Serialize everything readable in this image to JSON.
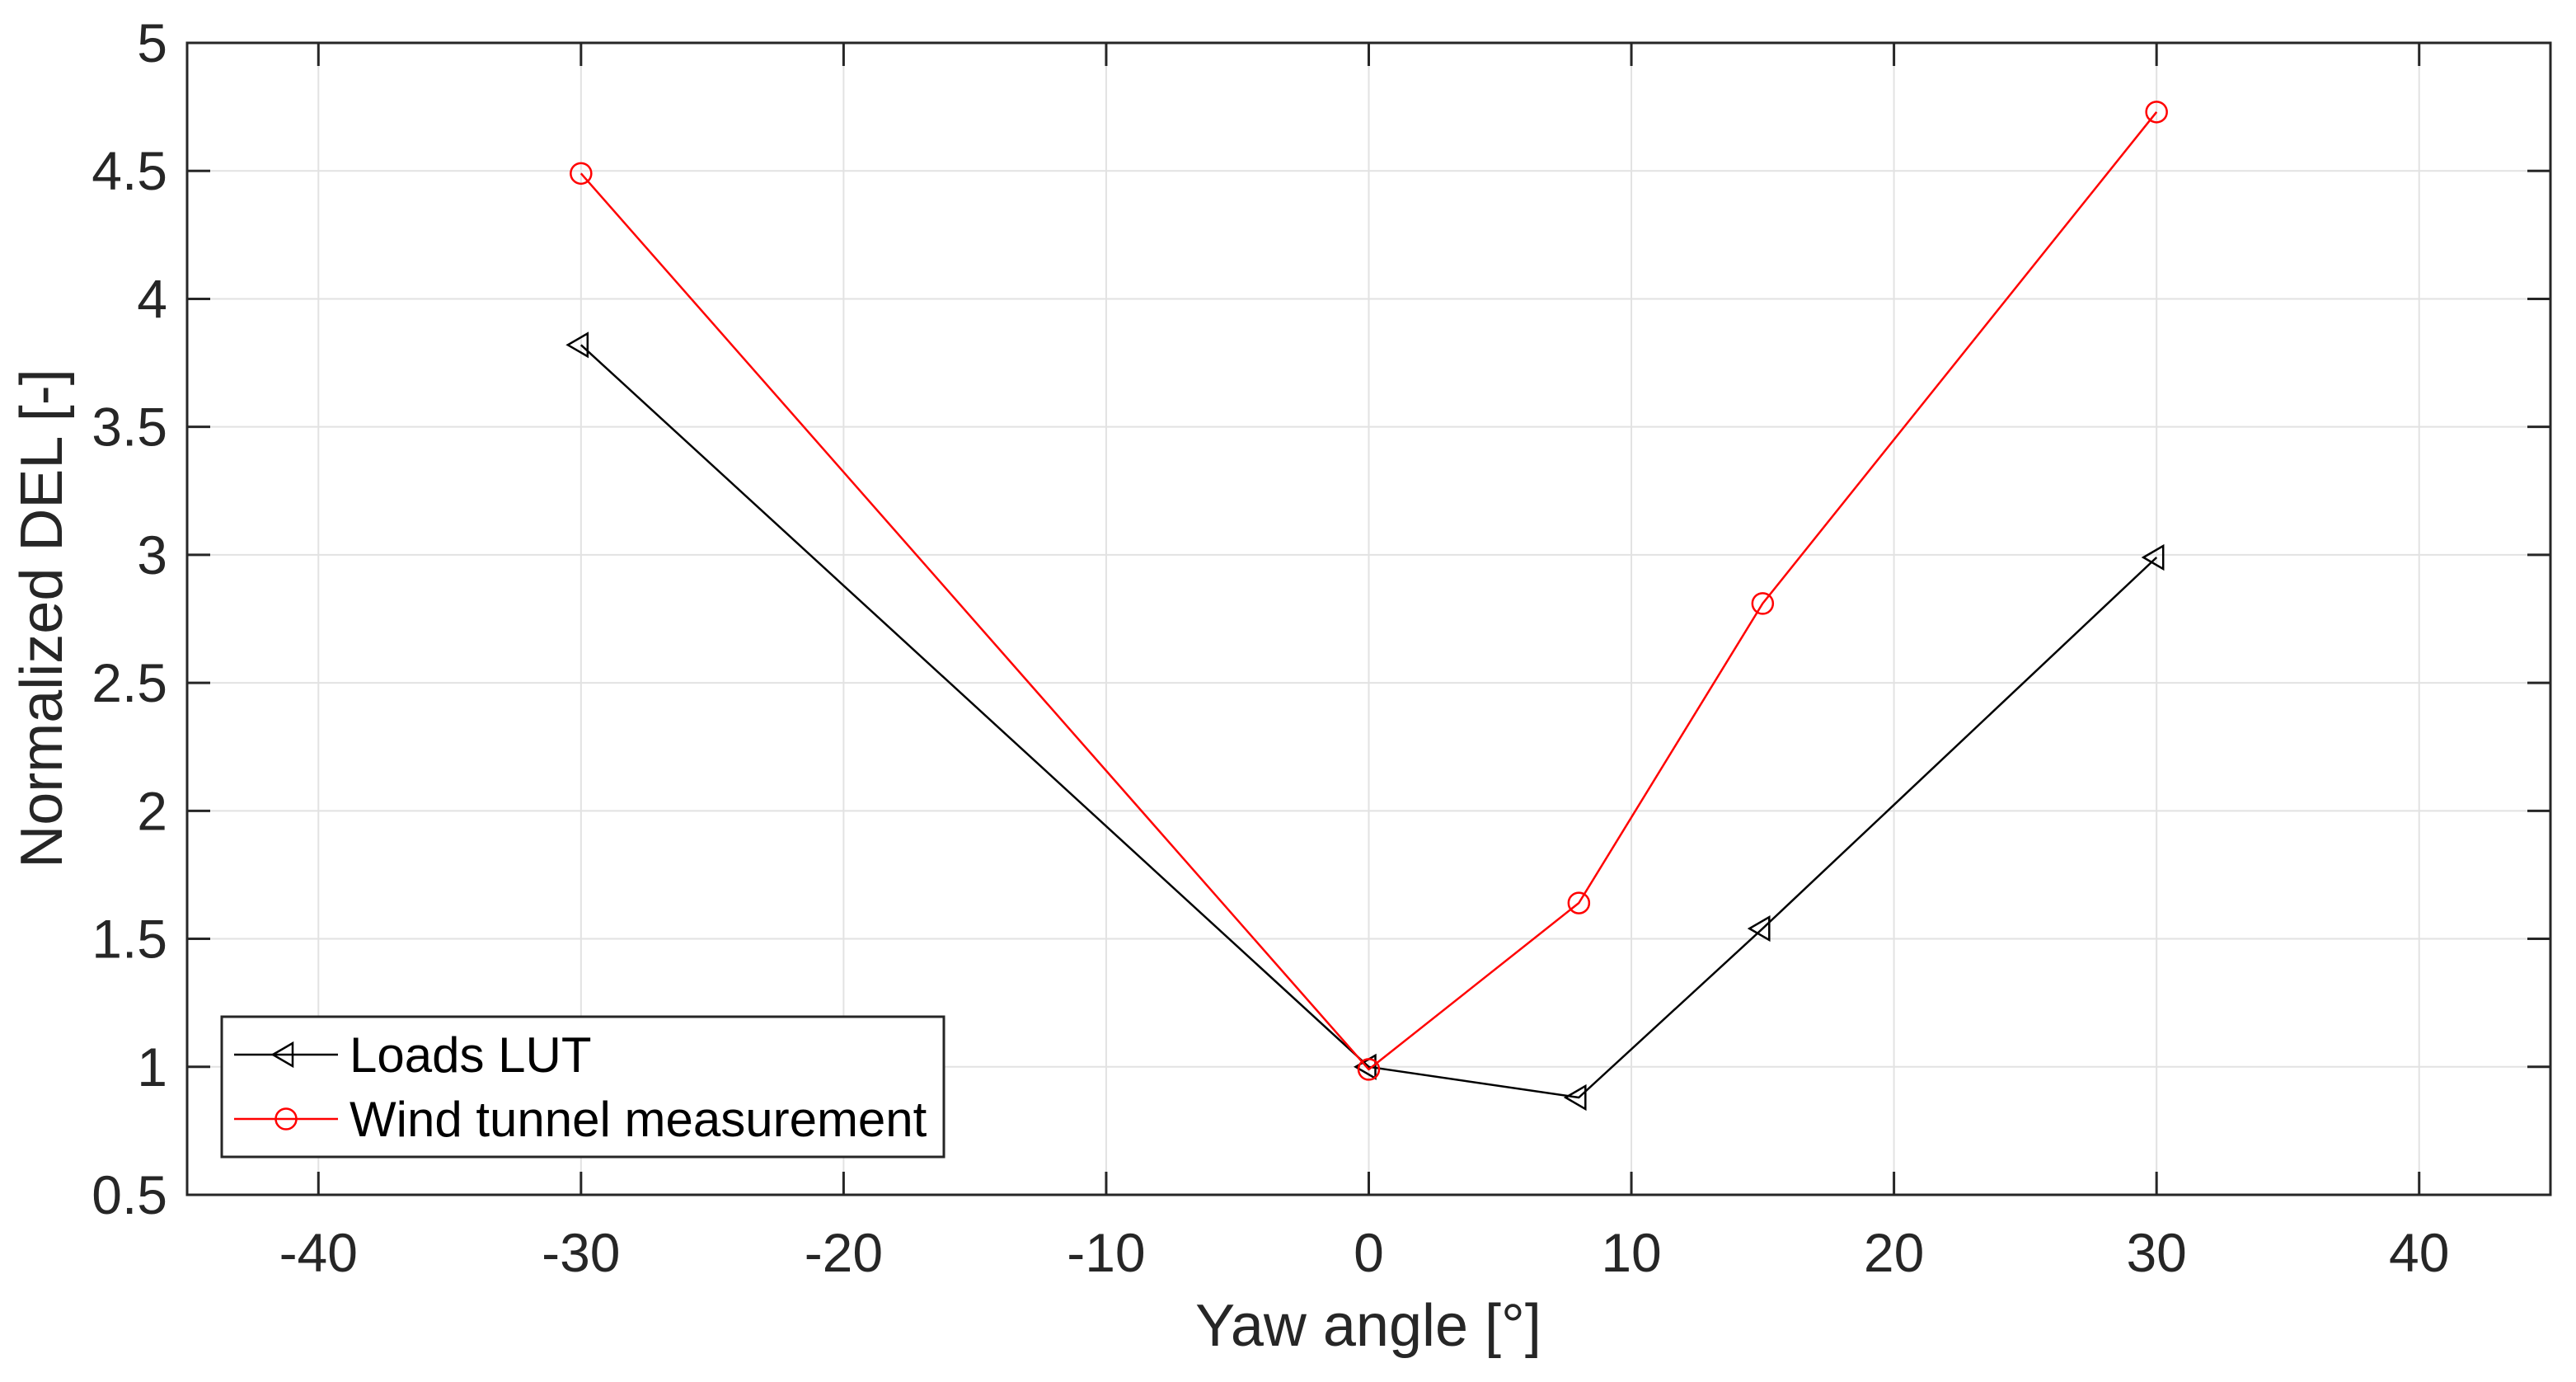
{
  "figure": {
    "background": "#ffffff",
    "axes_color": "#262626",
    "grid_color": "#e2e2e2",
    "grid_on": true
  },
  "chart_data": {
    "type": "line",
    "title": "",
    "xlabel": "Yaw angle [°]",
    "ylabel": "Normalized DEL [-]",
    "xlim": [
      -45,
      45
    ],
    "ylim": [
      0.5,
      5
    ],
    "xticks": [
      -40,
      -30,
      -20,
      -10,
      0,
      10,
      20,
      30,
      40
    ],
    "xtick_labels": [
      "-40",
      "-30",
      "-20",
      "-10",
      "0",
      "10",
      "20",
      "30",
      "40"
    ],
    "yticks": [
      0.5,
      1,
      1.5,
      2,
      2.5,
      3,
      3.5,
      4,
      4.5,
      5
    ],
    "ytick_labels": [
      "0.5",
      "1",
      "1.5",
      "2",
      "2.5",
      "3",
      "3.5",
      "4",
      "4.5",
      "5"
    ],
    "grid": true,
    "legend": {
      "position": "inside-bottom-left",
      "entries": [
        "Loads LUT",
        "Wind tunnel measurement"
      ]
    },
    "series": [
      {
        "name": "Loads LUT",
        "color": "#000000",
        "marker": "triangle-left",
        "x": [
          -30,
          0,
          8,
          15,
          30
        ],
        "y": [
          3.82,
          1.0,
          0.88,
          1.54,
          2.99
        ]
      },
      {
        "name": "Wind tunnel measurement",
        "color": "#ff0000",
        "marker": "circle",
        "x": [
          -30,
          0,
          8,
          15,
          30
        ],
        "y": [
          4.49,
          0.99,
          1.64,
          2.81,
          4.73
        ]
      }
    ]
  }
}
